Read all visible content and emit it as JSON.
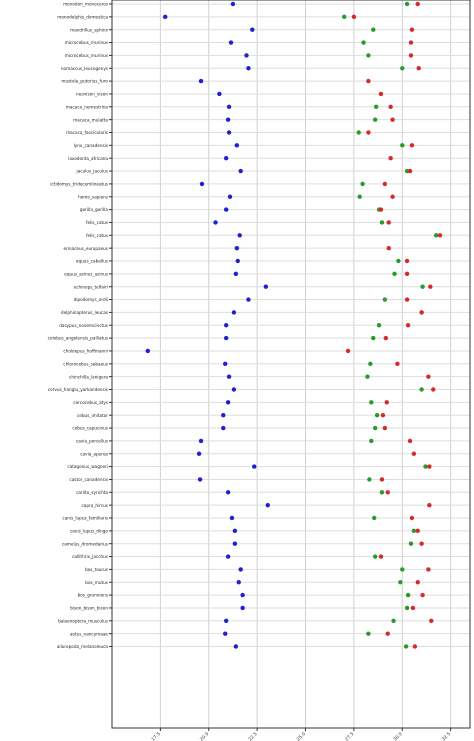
{
  "chart_data": {
    "type": "scatter",
    "title": "",
    "xlabel": "",
    "ylabel": "",
    "xlim": [
      10,
      47
    ],
    "grid": true,
    "xticks": [
      15,
      20,
      25,
      30,
      35,
      40,
      45
    ],
    "xtick_labels": [
      "17.5",
      "20.0",
      "22.5",
      "25.0",
      "27.5",
      "30.0",
      "32.5"
    ],
    "categories": [
      "monodon_monoceros",
      "monodelphis_domestica",
      "mandrillus_sphinx",
      "microcebus_murinus",
      "microcebus_murinus",
      "nomascus_leucogenys",
      "mustela_putorius_furo",
      "neovison_vison",
      "macaca_nemestrina",
      "macaca_mulatta",
      "macaca_fascicularis",
      "lynx_canadensis",
      "loxodonta_africana",
      "jaculus_jaculus",
      "ictidomys_tridecemlineatus",
      "homo_sapiens",
      "gorilla_gorilla",
      "felis_catus",
      "felis_catus",
      "erinaceus_europaeus",
      "equus_caballus",
      "equus_asinus_asinus",
      "echinops_telfairi",
      "dipodomys_ordii",
      "delphinapterus_leucas",
      "dasypus_novemcinctus",
      "colobus_angolensis_palliatus",
      "choloepus_hoffmanni",
      "chlorocebus_sabaeus",
      "chinchilla_lanigera",
      "cervus_hanglu_yarkandensis",
      "cercocebus_atys",
      "cebus_imitator",
      "cebus_capucinus",
      "cavia_porcellus",
      "cavia_aperea",
      "catagonus_wagneri",
      "castor_canadensis",
      "carlito_syrichta",
      "capra_hircus",
      "canis_lupus_familiaris",
      "canis_lupus_dingo",
      "camelus_dromedarius",
      "callithrix_jacchus",
      "bos_taurus",
      "bos_mutus",
      "bos_grunniens",
      "bison_bison_bison",
      "balaenoptera_musculus",
      "aotus_nancymaae",
      "ailuropoda_melanoleuca"
    ],
    "series": [
      {
        "color": "#1f1fd6",
        "values": [
          22.5,
          15.5,
          24.5,
          22.3,
          23.9,
          24.1,
          19.2,
          21.1,
          22.1,
          22.0,
          22.1,
          22.9,
          21.8,
          23.3,
          19.3,
          22.2,
          21.8,
          20.7,
          23.2,
          22.9,
          23.0,
          22.8,
          25.9,
          24.1,
          22.6,
          21.8,
          21.8,
          13.7,
          21.7,
          22.1,
          22.6,
          22.0,
          21.5,
          21.5,
          19.2,
          19.0,
          24.7,
          19.1,
          22.0,
          26.1,
          22.4,
          22.7,
          22.7,
          22.0,
          23.3,
          23.1,
          23.5,
          23.5,
          21.8,
          21.7,
          22.8
        ]
      },
      {
        "color": "#2a9a2a",
        "values": [
          40.5,
          34.0,
          37.0,
          36.0,
          36.5,
          40.0,
          null,
          null,
          37.3,
          37.2,
          35.5,
          40.0,
          null,
          40.5,
          35.9,
          35.6,
          37.6,
          37.9,
          43.5,
          null,
          39.6,
          39.2,
          42.1,
          38.2,
          42.0,
          37.6,
          37.0,
          null,
          36.7,
          36.4,
          42.0,
          36.8,
          37.4,
          37.2,
          36.8,
          null,
          42.4,
          36.6,
          37.9,
          null,
          37.1,
          41.2,
          40.9,
          37.2,
          40.0,
          39.8,
          40.6,
          40.5,
          39.1,
          36.5,
          40.4
        ]
      },
      {
        "color": "#d62a2a",
        "values": [
          41.6,
          35.0,
          41.0,
          40.9,
          40.9,
          41.7,
          36.5,
          37.8,
          38.8,
          39.0,
          36.5,
          41.0,
          38.8,
          40.8,
          38.2,
          39.0,
          37.8,
          38.6,
          43.9,
          38.6,
          40.5,
          40.5,
          42.9,
          40.5,
          42.0,
          40.6,
          38.3,
          34.4,
          39.5,
          42.7,
          43.2,
          38.4,
          38.0,
          38.2,
          40.8,
          41.2,
          42.8,
          37.9,
          38.5,
          42.8,
          41.0,
          41.6,
          42.0,
          37.8,
          42.7,
          41.6,
          42.1,
          41.1,
          43.0,
          38.5,
          41.3
        ]
      }
    ]
  }
}
